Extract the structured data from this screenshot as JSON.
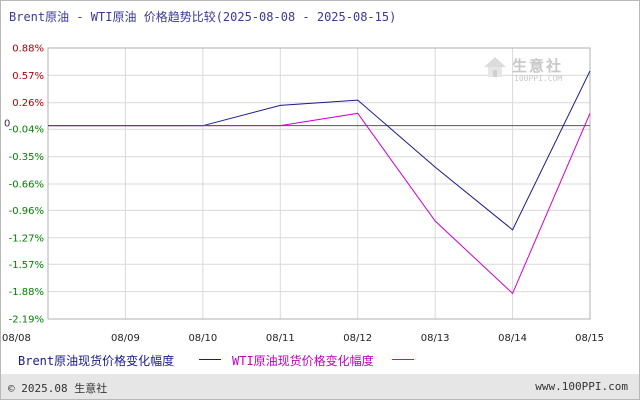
{
  "header": {
    "title": "Brent原油 - WTI原油 价格趋势比较(2025-08-08 - 2025-08-15)"
  },
  "watermark": {
    "name": "生意社",
    "url": "100PPI.COM"
  },
  "footer": {
    "copyright": "© 2025.08 生意社",
    "website": "www.100PPI.com"
  },
  "colors": {
    "brent": "#1a1a8c",
    "wti": "#d000d0",
    "grid": "#d9d9d9",
    "zero_axis": "#555555",
    "positive_tick": "#b00000",
    "negative_tick": "#008000"
  },
  "chart_data": {
    "type": "line",
    "title": "Brent原油 - WTI原油 价格趋势比较(2025-08-08 - 2025-08-15)",
    "xlabel": "",
    "ylabel": "",
    "categories": [
      "08/08",
      "08/09",
      "08/10",
      "08/11",
      "08/12",
      "08/13",
      "08/14",
      "08/15"
    ],
    "y_ticks": [
      "0.88%",
      "0.57%",
      "0.26%",
      "-0.04%",
      "-0.35%",
      "-0.66%",
      "-0.96%",
      "-1.27%",
      "-1.57%",
      "-1.88%",
      "-2.19%"
    ],
    "y_tick_values": [
      0.88,
      0.57,
      0.26,
      -0.04,
      -0.35,
      -0.66,
      -0.96,
      -1.27,
      -1.57,
      -1.88,
      -2.19
    ],
    "zero_label": "0",
    "ylim": [
      -2.19,
      0.88
    ],
    "grid": true,
    "series": [
      {
        "name": "Brent原油现货价格变化幅度",
        "color": "#1a1a8c",
        "values": [
          0.0,
          0.0,
          0.0,
          0.23,
          0.29,
          -0.47,
          -1.18,
          0.62
        ]
      },
      {
        "name": "WTI原油现货价格变化幅度",
        "color": "#d000d0",
        "values": [
          0.0,
          0.0,
          0.0,
          0.0,
          0.14,
          -1.08,
          -1.9,
          0.14
        ]
      }
    ],
    "legend_placement": "bottom"
  }
}
